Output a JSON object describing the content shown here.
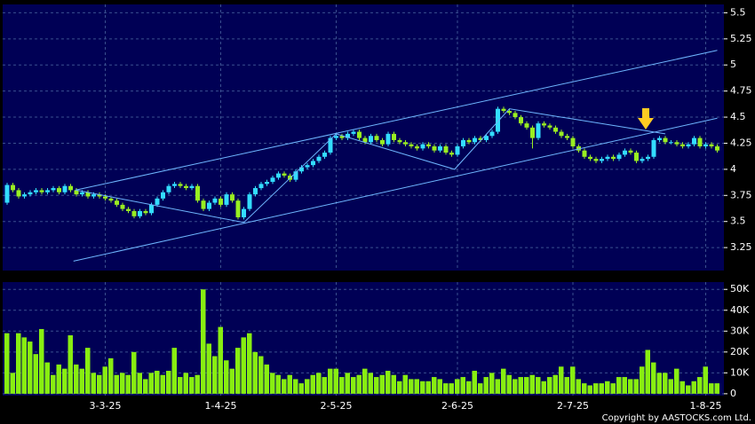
{
  "chart_data": [
    {
      "type": "candlestick",
      "categories": [
        null,
        null,
        null,
        null,
        null,
        null,
        null,
        null,
        null,
        null,
        null,
        null,
        null,
        null,
        null,
        null,
        null,
        "3-3-25",
        null,
        null,
        null,
        null,
        null,
        null,
        null,
        null,
        null,
        null,
        null,
        null,
        null,
        null,
        null,
        null,
        null,
        null,
        null,
        "1-4-25",
        null,
        null,
        null,
        null,
        null,
        null,
        null,
        null,
        null,
        null,
        null,
        null,
        null,
        null,
        null,
        null,
        null,
        null,
        null,
        "2-5-25",
        null,
        null,
        null,
        null,
        null,
        null,
        null,
        null,
        null,
        null,
        null,
        null,
        null,
        null,
        null,
        null,
        null,
        null,
        null,
        null,
        "2-6-25",
        null,
        null,
        null,
        null,
        null,
        null,
        null,
        null,
        null,
        null,
        null,
        null,
        null,
        null,
        null,
        null,
        null,
        null,
        null,
        "2-7-25",
        null,
        null,
        null,
        null,
        null,
        null,
        null,
        null,
        null,
        null,
        null,
        null,
        null,
        null,
        null,
        null,
        null,
        null,
        null,
        null,
        null,
        null,
        "1-8-25",
        null,
        null
      ],
      "open": [
        3.68,
        3.85,
        3.8,
        3.74,
        3.76,
        3.78,
        3.8,
        3.78,
        3.8,
        3.82,
        3.78,
        3.84,
        3.8,
        3.76,
        3.78,
        3.74,
        3.76,
        3.74,
        3.72,
        3.7,
        3.66,
        3.62,
        3.6,
        3.55,
        3.6,
        3.58,
        3.66,
        3.72,
        3.78,
        3.84,
        3.86,
        3.84,
        3.82,
        3.84,
        3.7,
        3.62,
        3.68,
        3.72,
        3.66,
        3.76,
        3.7,
        3.54,
        3.62,
        3.76,
        3.82,
        3.86,
        3.88,
        3.92,
        3.96,
        3.94,
        3.9,
        3.98,
        4.02,
        4.04,
        4.08,
        4.12,
        4.16,
        4.3,
        4.32,
        4.3,
        4.34,
        4.36,
        4.3,
        4.26,
        4.32,
        4.28,
        4.24,
        4.34,
        4.28,
        4.26,
        4.24,
        4.22,
        4.2,
        4.24,
        4.22,
        4.18,
        4.22,
        4.16,
        4.14,
        4.22,
        4.28,
        4.26,
        4.3,
        4.28,
        4.32,
        4.36,
        4.58,
        4.56,
        4.54,
        4.5,
        4.44,
        4.4,
        4.3,
        4.44,
        4.42,
        4.4,
        4.36,
        4.32,
        4.3,
        4.22,
        4.18,
        4.12,
        4.1,
        4.08,
        4.1,
        4.12,
        4.1,
        4.14,
        4.18,
        4.16,
        4.08,
        4.1,
        4.12,
        4.28,
        4.3,
        4.26,
        4.26,
        4.24,
        4.22,
        4.24,
        4.3,
        4.22,
        4.24,
        4.22
      ],
      "high": [
        3.87,
        3.87,
        3.82,
        3.78,
        3.8,
        3.82,
        3.82,
        3.82,
        3.84,
        3.84,
        3.86,
        3.86,
        3.82,
        3.8,
        3.8,
        3.78,
        3.78,
        3.76,
        3.74,
        3.72,
        3.68,
        3.64,
        3.62,
        3.62,
        3.62,
        3.68,
        3.74,
        3.8,
        3.86,
        3.88,
        3.88,
        3.86,
        3.86,
        3.86,
        3.72,
        3.7,
        3.74,
        3.74,
        3.78,
        3.78,
        3.72,
        3.64,
        3.78,
        3.84,
        3.88,
        3.9,
        3.94,
        3.98,
        3.98,
        3.96,
        4.0,
        4.04,
        4.06,
        4.1,
        4.14,
        4.18,
        4.32,
        4.34,
        4.34,
        4.36,
        4.38,
        4.38,
        4.32,
        4.34,
        4.34,
        4.3,
        4.36,
        4.36,
        4.3,
        4.28,
        4.26,
        4.24,
        4.26,
        4.26,
        4.24,
        4.24,
        4.24,
        4.18,
        4.24,
        4.3,
        4.3,
        4.32,
        4.32,
        4.34,
        4.38,
        4.6,
        4.6,
        4.58,
        4.56,
        4.52,
        4.46,
        4.42,
        4.46,
        4.46,
        4.44,
        4.42,
        4.38,
        4.34,
        4.32,
        4.24,
        4.2,
        4.14,
        4.12,
        4.12,
        4.14,
        4.14,
        4.16,
        4.2,
        4.2,
        4.18,
        4.12,
        4.14,
        4.3,
        4.32,
        4.32,
        4.28,
        4.28,
        4.26,
        4.26,
        4.32,
        4.32,
        4.26,
        4.26,
        4.24
      ],
      "low": [
        3.66,
        3.78,
        3.72,
        3.72,
        3.74,
        3.76,
        3.76,
        3.76,
        3.78,
        3.76,
        3.76,
        3.78,
        3.74,
        3.74,
        3.72,
        3.72,
        3.72,
        3.7,
        3.68,
        3.64,
        3.6,
        3.58,
        3.53,
        3.53,
        3.56,
        3.56,
        3.64,
        3.7,
        3.76,
        3.82,
        3.82,
        3.8,
        3.8,
        3.68,
        3.6,
        3.6,
        3.66,
        3.64,
        3.64,
        3.68,
        3.52,
        3.52,
        3.6,
        3.74,
        3.8,
        3.84,
        3.86,
        3.9,
        3.92,
        3.88,
        3.88,
        3.96,
        4.0,
        4.02,
        4.06,
        4.1,
        4.14,
        4.28,
        4.28,
        4.28,
        4.32,
        4.28,
        4.24,
        4.24,
        4.26,
        4.22,
        4.22,
        4.26,
        4.24,
        4.22,
        4.2,
        4.18,
        4.18,
        4.2,
        4.16,
        4.16,
        4.14,
        4.12,
        4.12,
        4.2,
        4.24,
        4.24,
        4.26,
        4.26,
        4.3,
        4.34,
        4.54,
        4.52,
        4.48,
        4.42,
        4.38,
        4.2,
        4.28,
        4.4,
        4.38,
        4.34,
        4.3,
        4.28,
        4.2,
        4.16,
        4.1,
        4.08,
        4.06,
        4.06,
        4.08,
        4.08,
        4.08,
        4.12,
        4.14,
        4.06,
        4.06,
        4.08,
        4.1,
        4.26,
        4.24,
        4.24,
        4.22,
        4.2,
        4.2,
        4.22,
        4.2,
        4.2,
        4.2,
        4.16
      ],
      "close": [
        3.85,
        3.8,
        3.74,
        3.76,
        3.78,
        3.8,
        3.78,
        3.8,
        3.82,
        3.78,
        3.84,
        3.8,
        3.76,
        3.78,
        3.74,
        3.76,
        3.74,
        3.72,
        3.7,
        3.66,
        3.62,
        3.6,
        3.55,
        3.6,
        3.58,
        3.66,
        3.72,
        3.78,
        3.84,
        3.86,
        3.84,
        3.82,
        3.84,
        3.7,
        3.62,
        3.68,
        3.72,
        3.66,
        3.76,
        3.7,
        3.54,
        3.62,
        3.76,
        3.82,
        3.86,
        3.88,
        3.92,
        3.96,
        3.94,
        3.9,
        3.98,
        4.02,
        4.04,
        4.08,
        4.12,
        4.16,
        4.3,
        4.32,
        4.3,
        4.34,
        4.36,
        4.3,
        4.26,
        4.32,
        4.28,
        4.24,
        4.34,
        4.28,
        4.26,
        4.24,
        4.22,
        4.2,
        4.24,
        4.22,
        4.18,
        4.22,
        4.16,
        4.14,
        4.22,
        4.28,
        4.26,
        4.3,
        4.28,
        4.32,
        4.36,
        4.58,
        4.56,
        4.54,
        4.5,
        4.44,
        4.4,
        4.3,
        4.44,
        4.42,
        4.4,
        4.36,
        4.32,
        4.3,
        4.22,
        4.18,
        4.12,
        4.1,
        4.08,
        4.1,
        4.12,
        4.1,
        4.14,
        4.18,
        4.16,
        4.08,
        4.1,
        4.12,
        4.28,
        4.3,
        4.26,
        4.26,
        4.24,
        4.22,
        4.24,
        4.3,
        4.22,
        4.24,
        4.22,
        4.18
      ],
      "up_color": "#33ddff",
      "down_color": "#99ee22",
      "ylim": [
        3.03,
        5.58
      ],
      "yticks": [
        3.25,
        3.5,
        3.75,
        4,
        4.25,
        4.5,
        4.75,
        5,
        5.25,
        5.5
      ],
      "grid": true,
      "trend_line_color": "#6fb7ff",
      "trend_lines": [
        {
          "x": [
            11.8,
            123
          ],
          "y": [
            3.8,
            5.14
          ]
        },
        {
          "x": [
            11.5,
            123
          ],
          "y": [
            3.12,
            4.49
          ]
        },
        {
          "x": [
            12,
            41,
            57,
            77.5,
            87,
            114
          ],
          "y": [
            3.8,
            3.49,
            4.34,
            4.0,
            4.58,
            4.34
          ]
        }
      ]
    },
    {
      "type": "bar",
      "color": "#88ee11",
      "values": [
        29000,
        10000,
        29000,
        27000,
        25000,
        19000,
        31000,
        15000,
        9000,
        14000,
        12000,
        28000,
        14000,
        12000,
        22000,
        10000,
        9000,
        13000,
        17000,
        9000,
        10000,
        9000,
        20000,
        10000,
        7000,
        10000,
        11000,
        9000,
        11000,
        22000,
        8000,
        10000,
        8000,
        9000,
        50000,
        24000,
        18000,
        32000,
        16000,
        12000,
        22000,
        27000,
        29000,
        20000,
        18000,
        14000,
        10000,
        9000,
        7000,
        9000,
        7000,
        5000,
        7000,
        9000,
        10000,
        8000,
        12000,
        12000,
        8000,
        10000,
        8000,
        9000,
        12000,
        10000,
        8000,
        9000,
        11000,
        9000,
        6000,
        9000,
        7000,
        7000,
        6000,
        6000,
        8000,
        7000,
        5000,
        5000,
        7000,
        8000,
        6000,
        11000,
        5000,
        8000,
        10000,
        7000,
        12000,
        9000,
        7000,
        8000,
        8000,
        9000,
        8000,
        6000,
        8000,
        9000,
        13000,
        8000,
        13000,
        7000,
        5000,
        4000,
        5000,
        5000,
        6000,
        5000,
        8000,
        8000,
        7000,
        7000,
        13000,
        21000,
        15000,
        10000,
        10000,
        7000,
        12000,
        6000,
        4000,
        6000,
        8000,
        13000,
        5000,
        5000
      ],
      "ylim": [
        -900,
        53500
      ],
      "yticks": [
        0,
        {
          "value": 10000,
          "label": "10K"
        },
        {
          "value": 20000,
          "label": "20K"
        },
        {
          "value": 30000,
          "label": "30K"
        },
        {
          "value": 40000,
          "label": "40K"
        },
        {
          "value": 50000,
          "label": "50K"
        }
      ],
      "grid": true
    }
  ],
  "copyright": "Copyright by AASTOCKS.com Ltd."
}
